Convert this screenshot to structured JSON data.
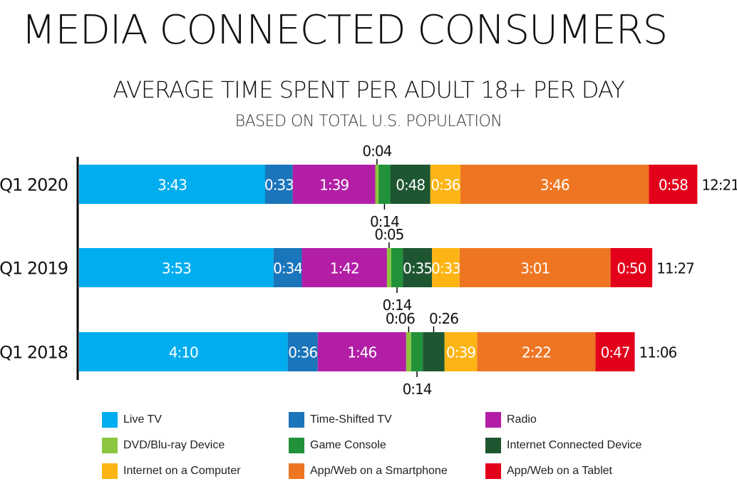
{
  "heading": "MEDIA CONNECTED CONSUMERS",
  "chart_data": {
    "type": "bar",
    "orientation": "horizontal",
    "stacked": true,
    "title": "AVERAGE TIME SPENT PER ADULT 18+ PER DAY",
    "subtitle": "BASED ON TOTAL U.S. POPULATION",
    "categories": [
      "Q1 2020",
      "Q1 2019",
      "Q1 2018"
    ],
    "totals": [
      "12:21",
      "11:27",
      "11:06"
    ],
    "series": [
      {
        "name": "Live TV",
        "color": "#00ADEF",
        "values": [
          "3:43",
          "3:53",
          "4:10"
        ]
      },
      {
        "name": "Time-Shifted TV",
        "color": "#1A75BB",
        "values": [
          "0:33",
          "0:34",
          "0:36"
        ]
      },
      {
        "name": "Radio",
        "color": "#B21FA6",
        "values": [
          "1:39",
          "1:42",
          "1:46"
        ]
      },
      {
        "name": "DVD/Blu-ray Device",
        "color": "#8CC63F",
        "values": [
          "0:04",
          "0:05",
          "0:06"
        ]
      },
      {
        "name": "Game Console",
        "color": "#21913A",
        "values": [
          "0:14",
          "0:14",
          "0:14"
        ]
      },
      {
        "name": "Internet Connected Device",
        "color": "#1E5631",
        "values": [
          "0:48",
          "0:35",
          "0:26"
        ]
      },
      {
        "name": "Internet on a Computer",
        "color": "#FDB515",
        "values": [
          "0:36",
          "0:33",
          "0:39"
        ]
      },
      {
        "name": "App/Web on a Smartphone",
        "color": "#EE7623",
        "values": [
          "3:46",
          "3:01",
          "2:22"
        ]
      },
      {
        "name": "App/Web on a Tablet",
        "color": "#E3001B",
        "values": [
          "0:58",
          "0:50",
          "0:47"
        ]
      }
    ],
    "grid": false,
    "legend_position": "bottom"
  }
}
